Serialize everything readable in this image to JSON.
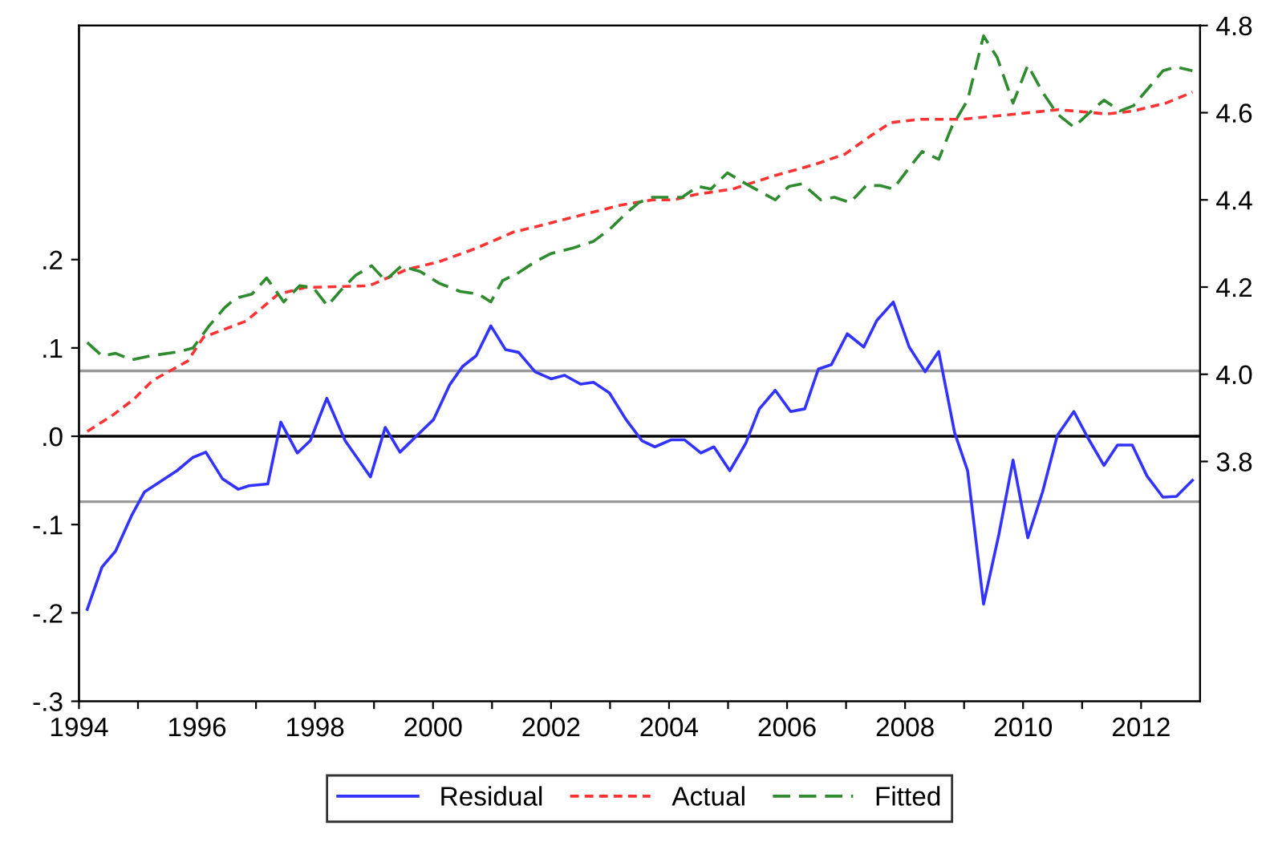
{
  "chart_data": {
    "type": "line",
    "xlim": [
      1994,
      2013
    ],
    "xticks": [
      1994,
      {
        "value": 1995,
        "label": null
      },
      1996,
      {
        "value": 1997,
        "label": null
      },
      1998,
      {
        "value": 1999,
        "label": null
      },
      2000,
      {
        "value": 2001,
        "label": null
      },
      2002,
      {
        "value": 2003,
        "label": null
      },
      2004,
      {
        "value": 2005,
        "label": null
      },
      2006,
      {
        "value": 2007,
        "label": null
      },
      2008,
      {
        "value": 2009,
        "label": null
      },
      2010,
      {
        "value": 2011,
        "label": null
      },
      2012
    ],
    "ylim": [
      -0.3,
      0.465
    ],
    "yticks": [
      {
        "value": -0.3,
        "label": "-.3"
      },
      {
        "value": -0.2,
        "label": "-.2"
      },
      {
        "value": -0.1,
        "label": "-.1"
      },
      {
        "value": 0,
        "label": ".0"
      },
      {
        "value": 0.1,
        "label": ".1"
      },
      {
        "value": 0.2,
        "label": ".2"
      }
    ],
    "y2lim": [
      3.25,
      4.8
    ],
    "y2ticks": [
      3.8,
      {
        "value": 4,
        "label": "4.0"
      },
      4.2,
      4.4,
      4.6,
      4.8
    ],
    "grid": false,
    "legend": "bottom",
    "ref_lines": [
      {
        "axis": "y",
        "value": 0,
        "color": "#000000",
        "line_style": "solid"
      },
      {
        "axis": "y",
        "value": 0.074,
        "color": "#999999",
        "line_style": "solid"
      },
      {
        "axis": "y",
        "value": -0.074,
        "color": "#999999",
        "line_style": "solid"
      }
    ],
    "series": [
      {
        "name": "Residual",
        "color": "#3333ff",
        "line_style": "solid",
        "x": [
          1994.14,
          1994.39,
          1994.62,
          1994.89,
          1995.11,
          1995.66,
          1995.93,
          1996.15,
          1996.43,
          1996.7,
          1996.88,
          1997.2,
          1997.42,
          1997.7,
          1997.92,
          1998.2,
          1998.51,
          1998.94,
          1999.19,
          1999.44,
          1999.73,
          2000.01,
          2000.28,
          2000.5,
          2000.73,
          2000.98,
          2001.23,
          2001.45,
          2001.73,
          2002.0,
          2002.23,
          2002.5,
          2002.72,
          2002.99,
          2003.27,
          2003.54,
          2003.76,
          2004.04,
          2004.26,
          2004.54,
          2004.76,
          2005.03,
          2005.3,
          2005.53,
          2005.8,
          2006.06,
          2006.3,
          2006.53,
          2006.75,
          2007.02,
          2007.3,
          2007.52,
          2007.8,
          2008.07,
          2008.34,
          2008.57,
          2008.84,
          2009.06,
          2009.33,
          2009.59,
          2009.83,
          2010.08,
          2010.33,
          2010.58,
          2010.86,
          2011.1,
          2011.37,
          2011.6,
          2011.85,
          2012.1,
          2012.37,
          2012.6,
          2012.87
        ],
        "values": [
          -0.196,
          -0.148,
          -0.13,
          -0.09,
          -0.063,
          -0.039,
          -0.024,
          -0.018,
          -0.048,
          -0.06,
          -0.056,
          -0.054,
          0.016,
          -0.019,
          -0.005,
          0.043,
          -0.005,
          -0.046,
          0.01,
          -0.018,
          0.001,
          0.019,
          0.058,
          0.079,
          0.091,
          0.125,
          0.098,
          0.095,
          0.073,
          0.065,
          0.069,
          0.059,
          0.061,
          0.049,
          0.019,
          -0.005,
          -0.012,
          -0.004,
          -0.004,
          -0.019,
          -0.012,
          -0.039,
          -0.008,
          0.031,
          0.052,
          0.028,
          0.031,
          0.076,
          0.081,
          0.116,
          0.101,
          0.131,
          0.152,
          0.101,
          0.073,
          0.096,
          0.004,
          -0.039,
          -0.19,
          -0.111,
          -0.027,
          -0.115,
          -0.063,
          0.001,
          0.028,
          -0.002,
          -0.033,
          -0.01,
          -0.01,
          -0.045,
          -0.069,
          -0.068,
          -0.05
        ]
      },
      {
        "name": "Actual",
        "color": "#ff3333",
        "line_style": "dotted",
        "axis": "y2",
        "x": [
          1994.14,
          1994.57,
          1994.93,
          1995.25,
          1995.84,
          1996.11,
          1996.83,
          1997.38,
          1997.83,
          1998.92,
          1999.55,
          2000.1,
          2000.73,
          2001.36,
          2001.91,
          2002.45,
          2003.18,
          2003.72,
          2004.08,
          2004.44,
          2005.08,
          2005.8,
          2006.44,
          2006.98,
          2007.43,
          2007.75,
          2008.25,
          2008.97,
          2009.88,
          2010.6,
          2011.42,
          2011.87,
          2012.42,
          2012.87
        ],
        "values": [
          3.869,
          3.906,
          3.943,
          3.986,
          4.03,
          4.085,
          4.122,
          4.184,
          4.199,
          4.203,
          4.24,
          4.258,
          4.289,
          4.326,
          4.344,
          4.363,
          4.388,
          4.4,
          4.4,
          4.412,
          4.425,
          4.456,
          4.48,
          4.505,
          4.548,
          4.577,
          4.585,
          4.585,
          4.597,
          4.607,
          4.597,
          4.604,
          4.622,
          4.647
        ]
      },
      {
        "name": "Fitted",
        "color": "#2e8b2e",
        "line_style": "dashed",
        "axis": "y2",
        "x": [
          1994.14,
          1994.39,
          1994.62,
          1994.89,
          1995.2,
          1995.66,
          1995.93,
          1996.2,
          1996.47,
          1996.65,
          1996.93,
          1997.18,
          1997.47,
          1997.74,
          1997.97,
          1998.21,
          1998.46,
          1998.69,
          1998.96,
          1999.19,
          1999.46,
          1999.78,
          2000.1,
          2000.46,
          2000.77,
          2000.98,
          2001.18,
          2001.45,
          2001.73,
          2002.0,
          2002.36,
          2002.72,
          2002.99,
          2003.27,
          2003.49,
          2003.72,
          2004.22,
          2004.49,
          2004.71,
          2004.99,
          2005.3,
          2005.8,
          2006.03,
          2006.26,
          2006.57,
          2006.8,
          2007.07,
          2007.34,
          2007.57,
          2007.8,
          2008.07,
          2008.29,
          2008.57,
          2008.79,
          2009.06,
          2009.33,
          2009.56,
          2009.83,
          2010.08,
          2010.33,
          2010.58,
          2010.86,
          2011.1,
          2011.37,
          2011.64,
          2011.87,
          2012.14,
          2012.37,
          2012.6,
          2012.87
        ],
        "values": [
          4.073,
          4.042,
          4.048,
          4.033,
          4.042,
          4.051,
          4.06,
          4.11,
          4.153,
          4.174,
          4.184,
          4.221,
          4.166,
          4.203,
          4.199,
          4.157,
          4.196,
          4.227,
          4.249,
          4.215,
          4.248,
          4.236,
          4.209,
          4.19,
          4.184,
          4.166,
          4.215,
          4.233,
          4.258,
          4.277,
          4.289,
          4.305,
          4.332,
          4.369,
          4.394,
          4.406,
          4.406,
          4.431,
          4.425,
          4.462,
          4.437,
          4.4,
          4.431,
          4.437,
          4.4,
          4.406,
          4.394,
          4.433,
          4.433,
          4.425,
          4.474,
          4.511,
          4.493,
          4.567,
          4.629,
          4.776,
          4.727,
          4.622,
          4.709,
          4.647,
          4.597,
          4.567,
          4.597,
          4.629,
          4.604,
          4.616,
          4.659,
          4.696,
          4.705,
          4.696
        ]
      }
    ]
  }
}
